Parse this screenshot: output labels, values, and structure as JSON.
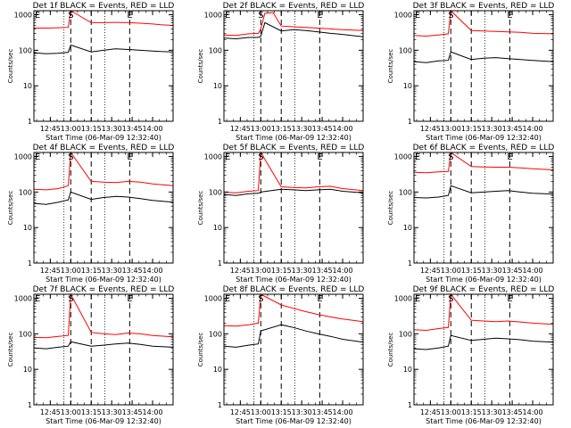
{
  "figure": {
    "xlabel": "Start Time (06-Mar-09 12:32:40)",
    "ylabel": "Counts/sec",
    "x_tick_labels": [
      "12:45",
      "13:00",
      "13:15",
      "13:30",
      "13:45",
      "14:00"
    ],
    "y_tick_labels": [
      "1",
      "10",
      "100",
      "1000"
    ],
    "markers": [
      {
        "label": "E",
        "t": 12.55
      },
      {
        "label": "S",
        "t": 13.0
      },
      {
        "label": "E",
        "t": 13.72
      }
    ],
    "colors": {
      "events": "#000000",
      "lld": "#ff0000",
      "axes": "#000000",
      "background": "#ffffff"
    }
  },
  "chart_data": [
    {
      "type": "line",
      "title": "Det 1f BLACK = Events, RED = LLD",
      "x_unit": "decimal hours",
      "xlim": [
        12.55,
        14.25
      ],
      "ylim": [
        1,
        1300
      ],
      "yscale": "log",
      "dotted_lines_x": [
        12.917,
        13.417
      ],
      "dashed_lines_x": [
        13.0,
        13.25,
        13.72
      ],
      "series": [
        {
          "name": "Events",
          "color": "#000000",
          "x": [
            12.55,
            12.7,
            12.85,
            12.97,
            13.0,
            13.25,
            13.4,
            13.55,
            13.7,
            13.85,
            14.0,
            14.1,
            14.25
          ],
          "y": [
            85,
            80,
            82,
            88,
            140,
            90,
            100,
            110,
            105,
            100,
            95,
            92,
            90
          ]
        },
        {
          "name": "LLD",
          "color": "#ff0000",
          "x": [
            12.55,
            12.7,
            12.85,
            12.97,
            13.0,
            13.25,
            13.4,
            13.55,
            13.7,
            13.85,
            14.0,
            14.1,
            14.25
          ],
          "y": [
            420,
            420,
            430,
            440,
            1300,
            600,
            600,
            610,
            600,
            580,
            550,
            520,
            500
          ]
        }
      ]
    },
    {
      "type": "line",
      "title": "Det 2f BLACK = Events, RED = LLD",
      "x_unit": "decimal hours",
      "xlim": [
        12.55,
        14.25
      ],
      "ylim": [
        1,
        1300
      ],
      "yscale": "log",
      "dotted_lines_x": [
        12.917,
        13.417
      ],
      "dashed_lines_x": [
        13.0,
        13.25,
        13.72
      ],
      "series": [
        {
          "name": "Events",
          "color": "#000000",
          "x": [
            12.55,
            12.7,
            12.85,
            12.97,
            13.0,
            13.05,
            13.25,
            13.4,
            13.55,
            13.7,
            13.85,
            14.0,
            14.25
          ],
          "y": [
            220,
            210,
            230,
            230,
            250,
            600,
            350,
            380,
            360,
            330,
            300,
            280,
            240
          ]
        },
        {
          "name": "LLD",
          "color": "#ff0000",
          "x": [
            12.55,
            12.7,
            12.85,
            12.97,
            13.0,
            13.05,
            13.15,
            13.25,
            13.4,
            13.55,
            13.7,
            13.85,
            14.0,
            14.25
          ],
          "y": [
            270,
            260,
            290,
            300,
            400,
            1100,
            1150,
            480,
            460,
            440,
            420,
            400,
            380,
            360
          ]
        }
      ]
    },
    {
      "type": "line",
      "title": "Det 3f BLACK = Events, RED = LLD",
      "x_unit": "decimal hours",
      "xlim": [
        12.55,
        14.25
      ],
      "ylim": [
        1,
        1300
      ],
      "yscale": "log",
      "dotted_lines_x": [
        12.917,
        13.417
      ],
      "dashed_lines_x": [
        13.0,
        13.25,
        13.72
      ],
      "series": [
        {
          "name": "Events",
          "color": "#000000",
          "x": [
            12.55,
            12.7,
            12.85,
            12.97,
            13.0,
            13.25,
            13.4,
            13.55,
            13.7,
            13.85,
            14.0,
            14.25
          ],
          "y": [
            48,
            45,
            50,
            52,
            90,
            55,
            60,
            62,
            58,
            55,
            52,
            48
          ]
        },
        {
          "name": "LLD",
          "color": "#ff0000",
          "x": [
            12.55,
            12.7,
            12.85,
            12.97,
            13.0,
            13.25,
            13.4,
            13.55,
            13.7,
            13.85,
            14.0,
            14.25
          ],
          "y": [
            260,
            250,
            270,
            290,
            1300,
            360,
            350,
            340,
            330,
            320,
            300,
            290
          ]
        }
      ]
    },
    {
      "type": "line",
      "title": "Det 4f BLACK = Events, RED = LLD",
      "x_unit": "decimal hours",
      "xlim": [
        12.55,
        14.25
      ],
      "ylim": [
        1,
        1300
      ],
      "yscale": "log",
      "dotted_lines_x": [
        12.917,
        13.417
      ],
      "dashed_lines_x": [
        13.0,
        13.25,
        13.72
      ],
      "series": [
        {
          "name": "Events",
          "color": "#000000",
          "x": [
            12.55,
            12.7,
            12.85,
            12.97,
            13.0,
            13.25,
            13.4,
            13.55,
            13.7,
            13.85,
            14.0,
            14.25
          ],
          "y": [
            48,
            45,
            52,
            60,
            100,
            62,
            70,
            75,
            72,
            65,
            58,
            52
          ]
        },
        {
          "name": "LLD",
          "color": "#ff0000",
          "x": [
            12.55,
            12.7,
            12.85,
            12.97,
            13.0,
            13.25,
            13.4,
            13.55,
            13.7,
            13.85,
            14.0,
            14.25
          ],
          "y": [
            120,
            115,
            125,
            150,
            1300,
            200,
            190,
            185,
            200,
            190,
            170,
            150
          ]
        }
      ]
    },
    {
      "type": "line",
      "title": "Det 5f BLACK = Events, RED = LLD",
      "x_unit": "decimal hours",
      "xlim": [
        12.55,
        14.25
      ],
      "ylim": [
        1,
        1300
      ],
      "yscale": "log",
      "dotted_lines_x": [
        12.917,
        13.417
      ],
      "dashed_lines_x": [
        13.0,
        13.25,
        13.72
      ],
      "series": [
        {
          "name": "Events",
          "color": "#000000",
          "x": [
            12.55,
            12.7,
            12.85,
            12.97,
            13.0,
            13.25,
            13.4,
            13.55,
            13.7,
            13.85,
            14.0,
            14.25
          ],
          "y": [
            85,
            80,
            90,
            92,
            100,
            120,
            115,
            110,
            115,
            120,
            105,
            95
          ]
        },
        {
          "name": "LLD",
          "color": "#ff0000",
          "x": [
            12.55,
            12.7,
            12.85,
            12.97,
            13.0,
            13.25,
            13.4,
            13.55,
            13.7,
            13.85,
            14.0,
            14.25
          ],
          "y": [
            100,
            95,
            105,
            110,
            1300,
            140,
            135,
            130,
            140,
            145,
            125,
            110
          ]
        }
      ]
    },
    {
      "type": "line",
      "title": "Det 6f BLACK = Events, RED = LLD",
      "x_unit": "decimal hours",
      "xlim": [
        12.55,
        14.25
      ],
      "ylim": [
        1,
        1300
      ],
      "yscale": "log",
      "dotted_lines_x": [
        12.917,
        13.417
      ],
      "dashed_lines_x": [
        13.0,
        13.25,
        13.72
      ],
      "series": [
        {
          "name": "Events",
          "color": "#000000",
          "x": [
            12.55,
            12.7,
            12.85,
            12.97,
            13.0,
            13.25,
            13.4,
            13.55,
            13.7,
            13.85,
            14.0,
            14.25
          ],
          "y": [
            70,
            68,
            72,
            80,
            150,
            95,
            100,
            105,
            110,
            100,
            92,
            88
          ]
        },
        {
          "name": "LLD",
          "color": "#ff0000",
          "x": [
            12.55,
            12.7,
            12.85,
            12.97,
            13.0,
            13.25,
            13.4,
            13.55,
            13.7,
            13.85,
            14.0,
            14.25
          ],
          "y": [
            360,
            350,
            370,
            380,
            1300,
            520,
            510,
            500,
            500,
            480,
            450,
            420
          ]
        }
      ]
    },
    {
      "type": "line",
      "title": "Det 7f BLACK = Events, RED = LLD",
      "x_unit": "decimal hours",
      "xlim": [
        12.55,
        14.25
      ],
      "ylim": [
        1,
        1300
      ],
      "yscale": "log",
      "dotted_lines_x": [
        12.917,
        13.417
      ],
      "dashed_lines_x": [
        13.0,
        13.25,
        13.72
      ],
      "series": [
        {
          "name": "Events",
          "color": "#000000",
          "x": [
            12.55,
            12.7,
            12.85,
            12.97,
            13.0,
            13.25,
            13.4,
            13.55,
            13.7,
            13.85,
            14.0,
            14.25
          ],
          "y": [
            40,
            38,
            42,
            45,
            60,
            45,
            48,
            52,
            55,
            50,
            45,
            42
          ]
        },
        {
          "name": "LLD",
          "color": "#ff0000",
          "x": [
            12.55,
            12.7,
            12.85,
            12.97,
            13.0,
            13.25,
            13.4,
            13.55,
            13.7,
            13.85,
            14.0,
            14.25
          ],
          "y": [
            80,
            78,
            85,
            90,
            1300,
            110,
            100,
            95,
            105,
            100,
            90,
            82
          ]
        }
      ]
    },
    {
      "type": "line",
      "title": "Det 8f BLACK = Events, RED = LLD",
      "x_unit": "decimal hours",
      "xlim": [
        12.55,
        14.25
      ],
      "ylim": [
        1,
        1300
      ],
      "yscale": "log",
      "dotted_lines_x": [
        12.917,
        13.417
      ],
      "dashed_lines_x": [
        13.0,
        13.25,
        13.72
      ],
      "series": [
        {
          "name": "Events",
          "color": "#000000",
          "x": [
            12.55,
            12.7,
            12.85,
            12.97,
            13.0,
            13.25,
            13.4,
            13.55,
            13.7,
            13.85,
            14.0,
            14.25
          ],
          "y": [
            45,
            42,
            48,
            52,
            120,
            180,
            150,
            120,
            100,
            85,
            70,
            58
          ]
        },
        {
          "name": "LLD",
          "color": "#ff0000",
          "x": [
            12.55,
            12.7,
            12.85,
            12.97,
            13.0,
            13.25,
            13.4,
            13.55,
            13.7,
            13.85,
            14.0,
            14.25
          ],
          "y": [
            170,
            165,
            180,
            200,
            1300,
            650,
            520,
            420,
            350,
            300,
            260,
            220
          ]
        }
      ]
    },
    {
      "type": "line",
      "title": "Det 9f BLACK = Events, RED = LLD",
      "x_unit": "decimal hours",
      "xlim": [
        12.55,
        14.25
      ],
      "ylim": [
        1,
        1300
      ],
      "yscale": "log",
      "dotted_lines_x": [
        12.917,
        13.417
      ],
      "dashed_lines_x": [
        13.0,
        13.25,
        13.72
      ],
      "series": [
        {
          "name": "Events",
          "color": "#000000",
          "x": [
            12.55,
            12.7,
            12.85,
            12.97,
            13.0,
            13.25,
            13.4,
            13.55,
            13.7,
            13.85,
            14.0,
            14.25
          ],
          "y": [
            38,
            36,
            40,
            45,
            90,
            65,
            70,
            75,
            72,
            68,
            62,
            58
          ]
        },
        {
          "name": "LLD",
          "color": "#ff0000",
          "x": [
            12.55,
            12.7,
            12.85,
            12.97,
            13.0,
            13.25,
            13.4,
            13.55,
            13.7,
            13.85,
            14.0,
            14.25
          ],
          "y": [
            130,
            125,
            140,
            150,
            1300,
            240,
            230,
            220,
            230,
            215,
            200,
            185
          ]
        }
      ]
    }
  ]
}
